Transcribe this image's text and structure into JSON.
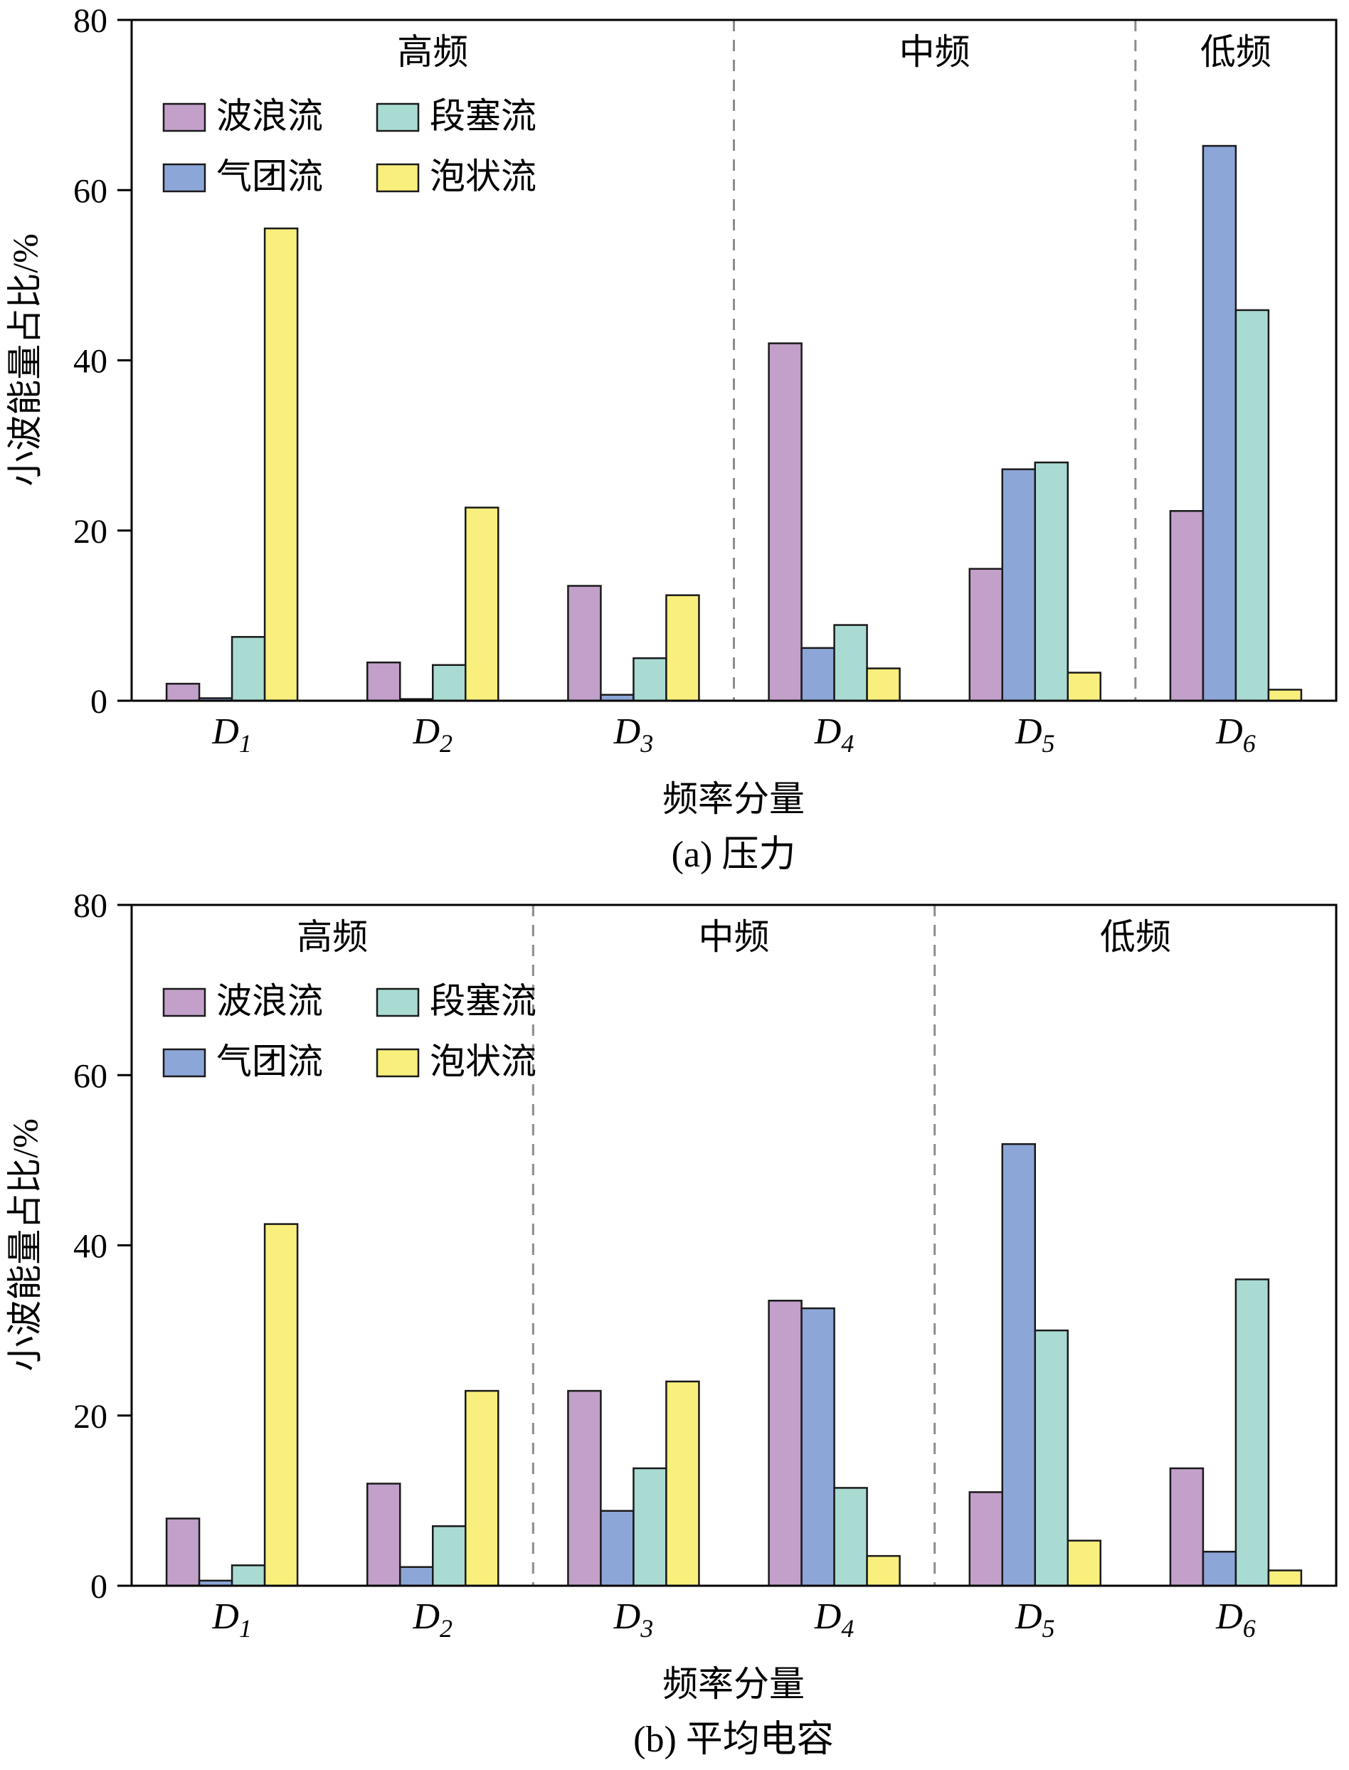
{
  "page": {
    "background": "#ffffff"
  },
  "colors": {
    "wave": "#c2a0c9",
    "gas": "#8da6d8",
    "slug": "#a9dbd3",
    "bubble": "#f8ef7d",
    "bar_edge": "#1a1a1a",
    "divider": "#8c8c8c",
    "axis": "#000000"
  },
  "legend": {
    "items": [
      {
        "label": "波浪流",
        "color_key": "wave"
      },
      {
        "label": "段塞流",
        "color_key": "slug"
      },
      {
        "label": "气团流",
        "color_key": "gas"
      },
      {
        "label": "泡状流",
        "color_key": "bubble"
      }
    ]
  },
  "chart_data": [
    {
      "type": "bar",
      "title": "(a) 压力",
      "xlabel": "频率分量",
      "ylabel": "小波能量占比/%",
      "ylim": [
        0,
        80
      ],
      "yticks": [
        0,
        20,
        40,
        60,
        80
      ],
      "grid": false,
      "legend_position": "top-left-inside",
      "categories": [
        "D1",
        "D2",
        "D3",
        "D4",
        "D5",
        "D6"
      ],
      "series": [
        {
          "name": "波浪流",
          "color_key": "wave",
          "values": [
            2.0,
            4.5,
            13.5,
            42.0,
            15.5,
            22.3
          ]
        },
        {
          "name": "气团流",
          "color_key": "gas",
          "values": [
            0.3,
            0.2,
            0.7,
            6.2,
            27.2,
            65.2
          ]
        },
        {
          "name": "段塞流",
          "color_key": "slug",
          "values": [
            7.5,
            4.2,
            5.0,
            8.9,
            28.0,
            45.9
          ]
        },
        {
          "name": "泡状流",
          "color_key": "bubble",
          "values": [
            55.5,
            22.7,
            12.4,
            3.8,
            3.3,
            1.3
          ]
        }
      ],
      "regions": [
        {
          "label": "高频",
          "from": 0,
          "to": 3
        },
        {
          "label": "中频",
          "from": 3,
          "to": 5
        },
        {
          "label": "低频",
          "from": 5,
          "to": 6
        }
      ],
      "dividers": [
        3,
        5
      ]
    },
    {
      "type": "bar",
      "title": "(b) 平均电容",
      "xlabel": "频率分量",
      "ylabel": "小波能量占比/%",
      "ylim": [
        0,
        80
      ],
      "yticks": [
        0,
        20,
        40,
        60,
        80
      ],
      "grid": false,
      "legend_position": "top-left-inside",
      "categories": [
        "D1",
        "D2",
        "D3",
        "D4",
        "D5",
        "D6"
      ],
      "series": [
        {
          "name": "波浪流",
          "color_key": "wave",
          "values": [
            7.9,
            12.0,
            22.9,
            33.5,
            11.0,
            13.8
          ]
        },
        {
          "name": "气团流",
          "color_key": "gas",
          "values": [
            0.6,
            2.2,
            8.8,
            32.6,
            51.9,
            4.0
          ]
        },
        {
          "name": "段塞流",
          "color_key": "slug",
          "values": [
            2.4,
            7.0,
            13.8,
            11.5,
            30.0,
            36.0
          ]
        },
        {
          "name": "泡状流",
          "color_key": "bubble",
          "values": [
            42.5,
            22.9,
            24.0,
            3.5,
            5.3,
            1.8
          ]
        }
      ],
      "regions": [
        {
          "label": "高频",
          "from": 0,
          "to": 2
        },
        {
          "label": "中频",
          "from": 2,
          "to": 4
        },
        {
          "label": "低频",
          "from": 4,
          "to": 6
        }
      ],
      "dividers": [
        2,
        4
      ]
    }
  ]
}
